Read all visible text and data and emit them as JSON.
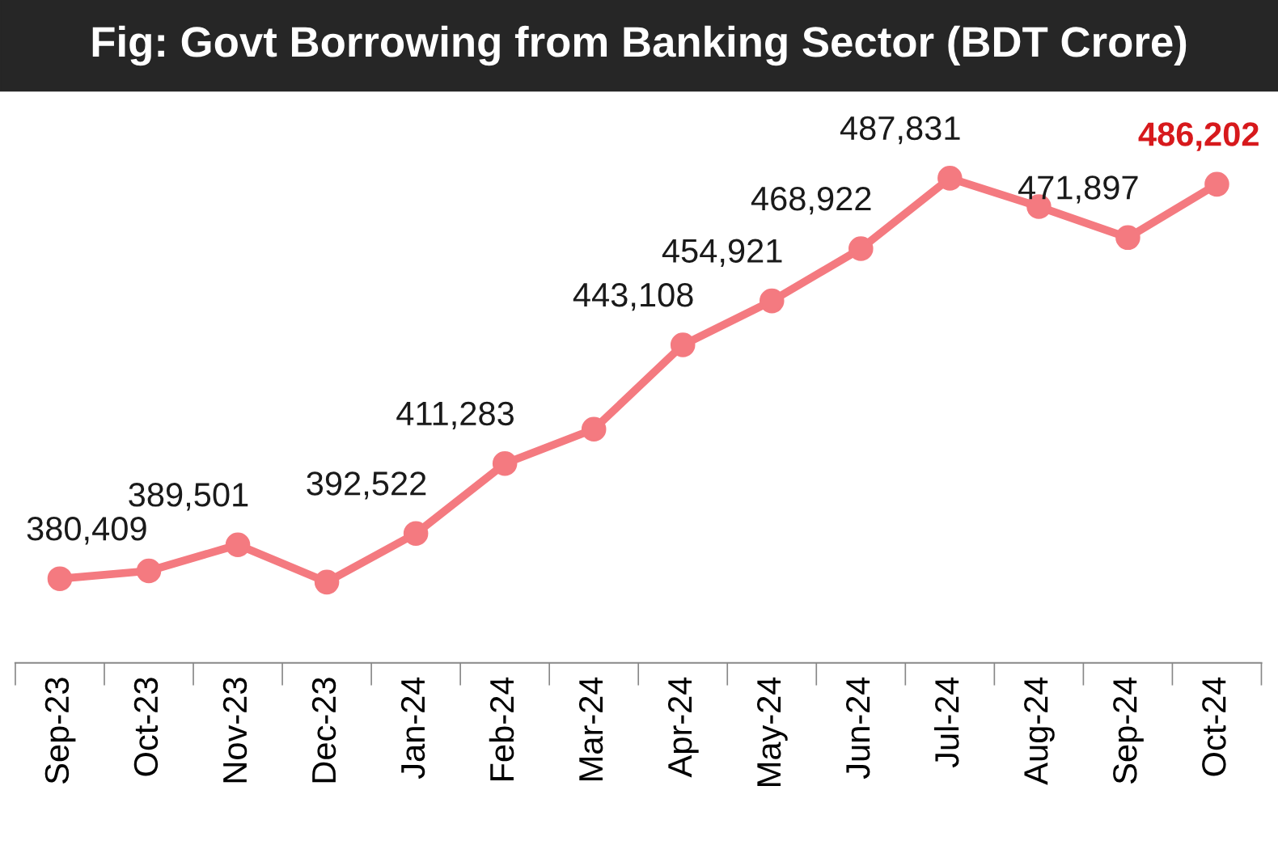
{
  "chart_data": {
    "type": "line",
    "title": "Fig: Govt Borrowing from Banking Sector (BDT Crore)",
    "categories": [
      "Sep-23",
      "Oct-23",
      "Nov-23",
      "Dec-23",
      "Jan-24",
      "Feb-24",
      "Mar-24",
      "Apr-24",
      "May-24",
      "Jun-24",
      "Jul-24",
      "Aug-24",
      "Sep-24",
      "Oct-24"
    ],
    "series": [
      {
        "color": "#f47a80",
        "values": [
          380409,
          382500,
          389501,
          379500,
          392522,
          411283,
          420500,
          443108,
          454921,
          468922,
          487831,
          480200,
          471897,
          486202
        ],
        "value_labels": [
          "380,409",
          null,
          "389,501",
          null,
          "392,522",
          "411,283",
          null,
          "443,108",
          "454,921",
          "468,922",
          "487,831",
          null,
          "471,897",
          "486,202"
        ]
      }
    ],
    "marker": "circle",
    "line_style": "solid",
    "grid": false,
    "legend": false,
    "tick_labels": "x"
  }
}
